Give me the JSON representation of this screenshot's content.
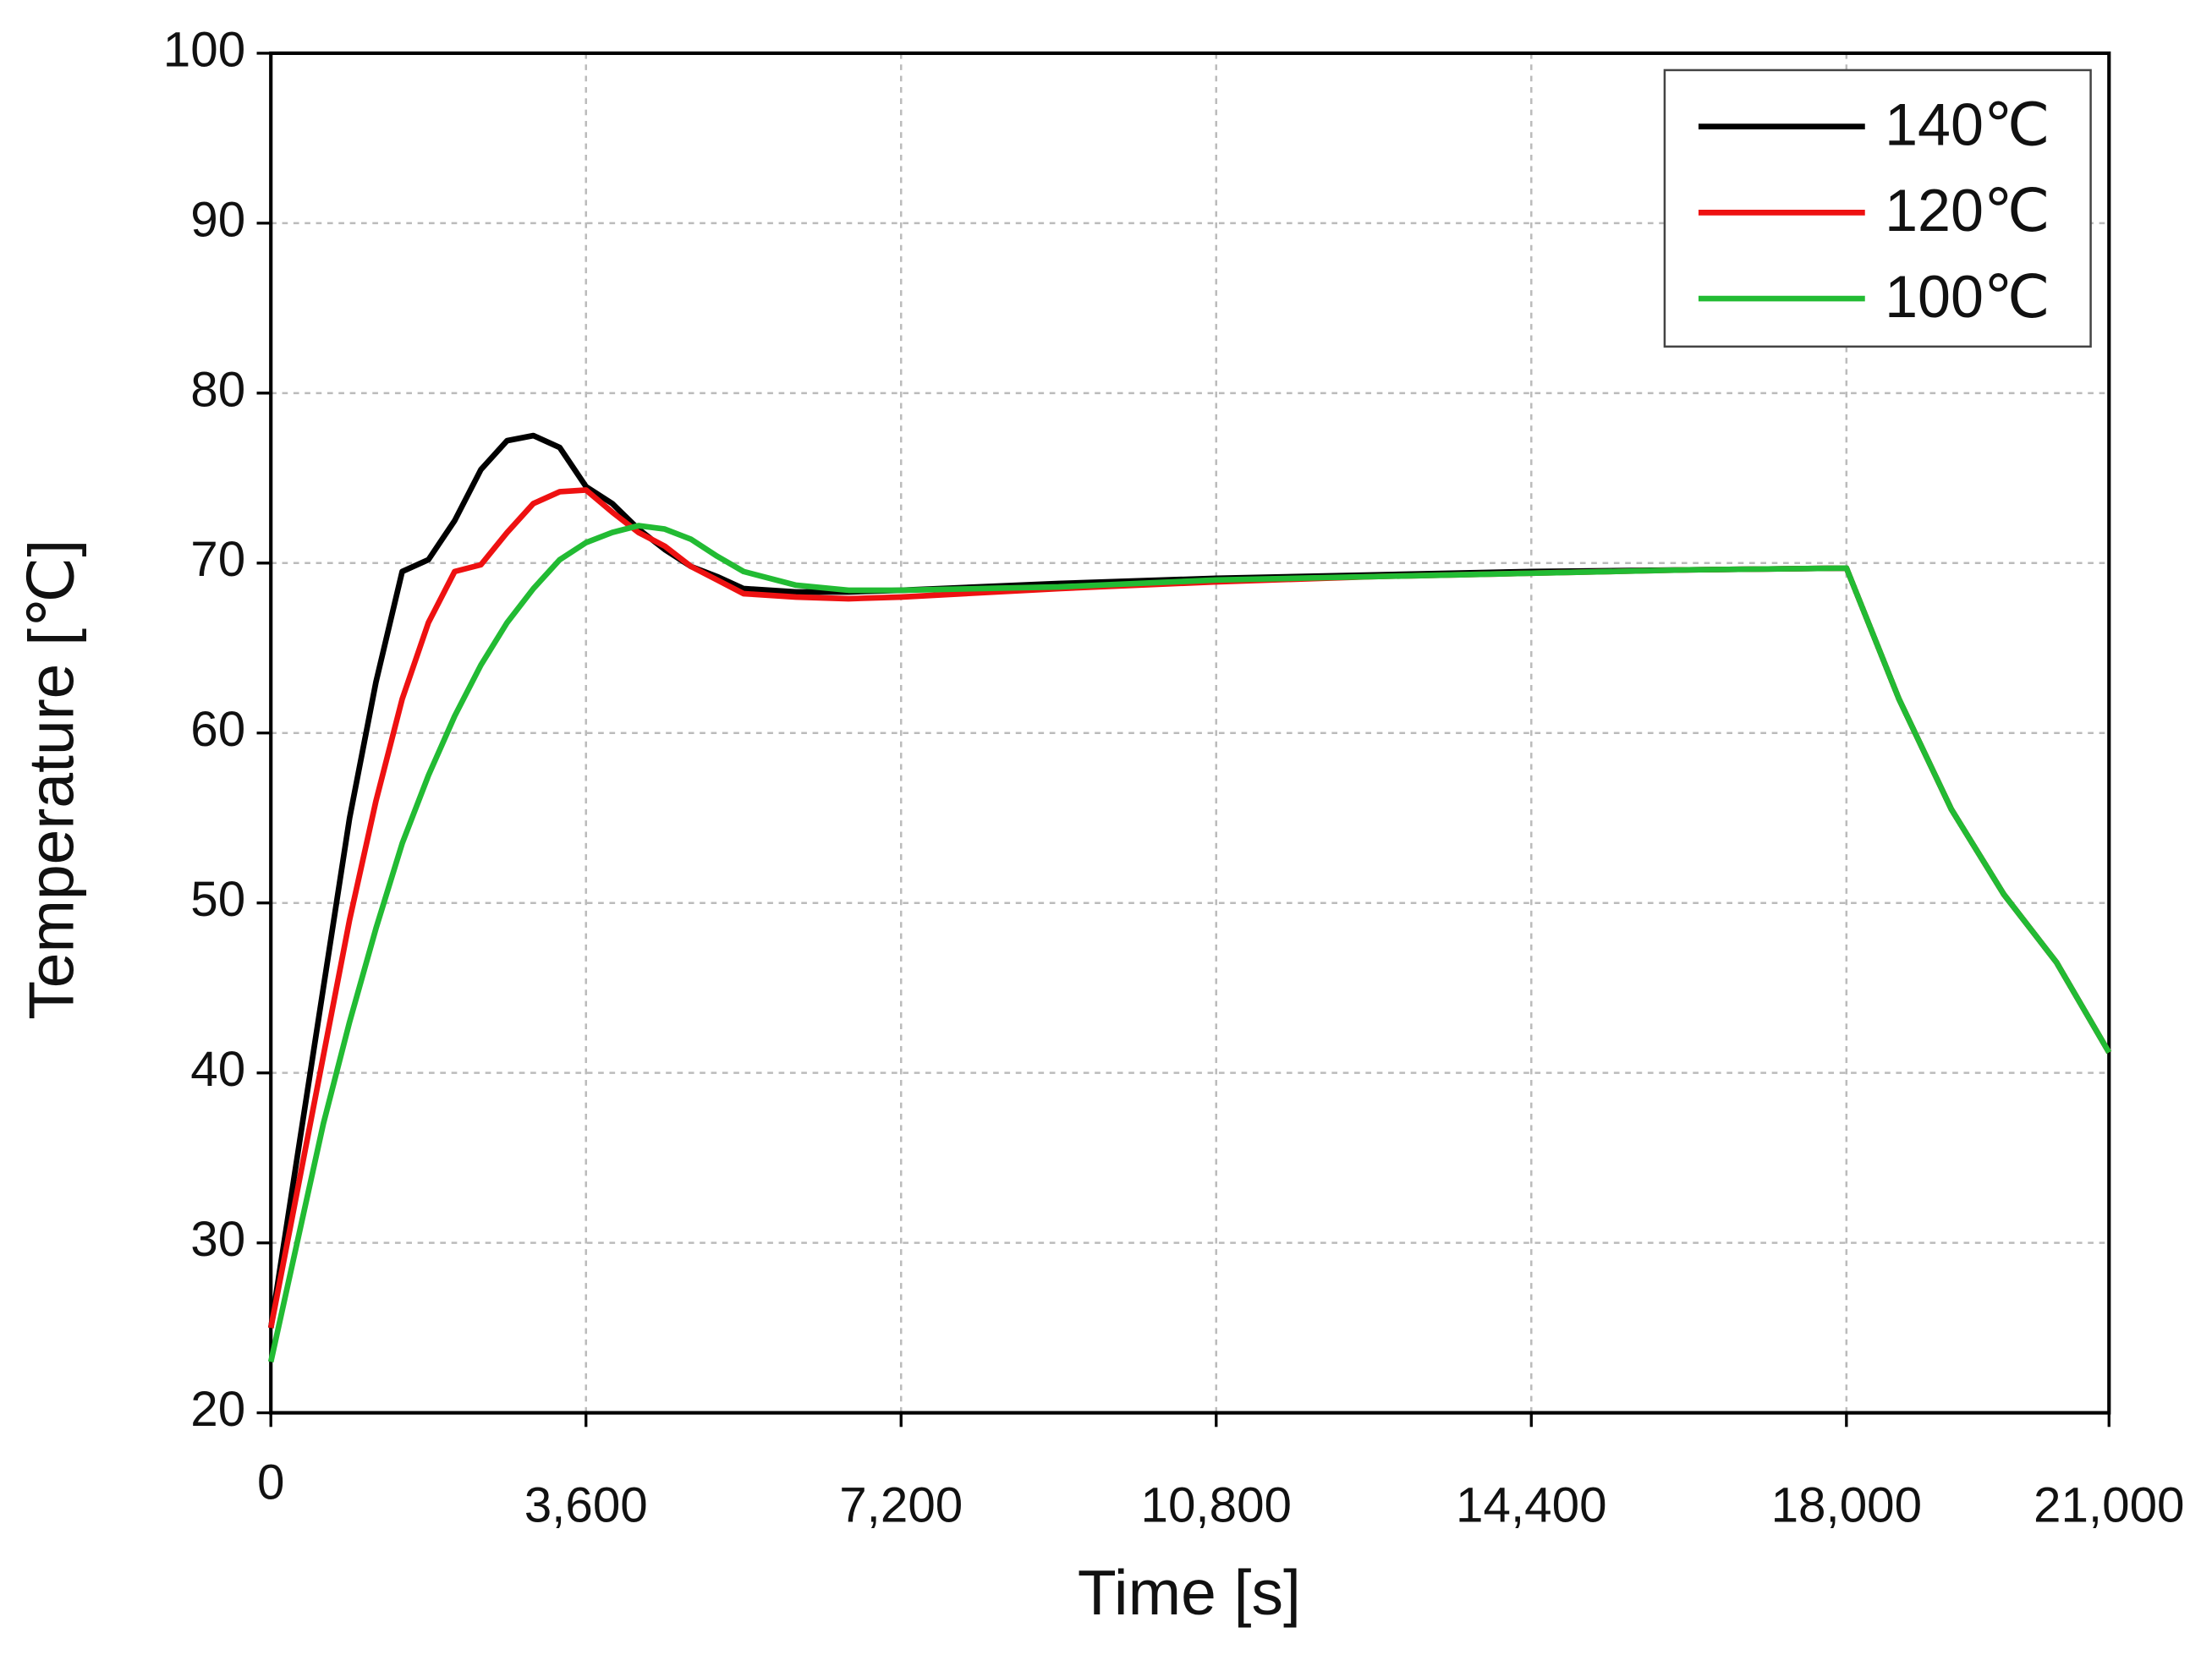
{
  "chart_data": {
    "type": "line",
    "xlabel": "Time [s]",
    "ylabel": "Temperature [℃]",
    "x": [
      0,
      300,
      600,
      900,
      1200,
      1500,
      1800,
      2100,
      2400,
      2700,
      3000,
      3300,
      3600,
      3900,
      4200,
      4500,
      4800,
      5100,
      5400,
      6000,
      6600,
      7200,
      9000,
      10800,
      12600,
      14400,
      16200,
      18000,
      18600,
      19200,
      19800,
      20400,
      21000
    ],
    "series": [
      {
        "name": "140℃",
        "color": "#000000",
        "values": [
          25,
          35,
          45,
          55,
          63,
          69.5,
          70.2,
          72.5,
          75.5,
          77.2,
          77.5,
          76.8,
          74.5,
          73.5,
          72,
          70.8,
          69.8,
          69.2,
          68.5,
          68.3,
          68.3,
          68.4,
          68.8,
          69.1,
          69.3,
          69.5,
          69.6,
          69.7,
          62,
          55.5,
          50.5,
          46.5,
          41.2
        ]
      },
      {
        "name": "120℃",
        "color": "#ee1111",
        "values": [
          25,
          33,
          41,
          49,
          56,
          62,
          66.5,
          69.5,
          69.9,
          71.8,
          73.5,
          74.2,
          74.3,
          73,
          71.8,
          71,
          69.8,
          69,
          68.2,
          68,
          67.9,
          68,
          68.5,
          68.9,
          69.2,
          69.4,
          69.6,
          69.7,
          62,
          55.5,
          50.5,
          46.5,
          41.2
        ]
      },
      {
        "name": "100℃",
        "color": "#22bb33",
        "values": [
          23,
          30,
          37,
          43,
          48.5,
          53.5,
          57.5,
          61,
          64,
          66.5,
          68.5,
          70.2,
          71.2,
          71.8,
          72.2,
          72,
          71.4,
          70.4,
          69.5,
          68.7,
          68.4,
          68.4,
          68.6,
          69,
          69.2,
          69.4,
          69.6,
          69.7,
          62,
          55.5,
          50.5,
          46.5,
          41.2
        ]
      }
    ],
    "xlim": [
      0,
      21000
    ],
    "ylim": [
      20,
      100
    ],
    "xticks": [
      0,
      {
        "value": 3600,
        "label": "3,600"
      },
      {
        "value": 7200,
        "label": "7,200"
      },
      {
        "value": 10800,
        "label": "10,800"
      },
      {
        "value": 14400,
        "label": "14,400"
      },
      {
        "value": 18000,
        "label": "18,000"
      },
      {
        "value": 21000,
        "label": "21,000"
      }
    ],
    "yticks": [
      20,
      30,
      40,
      50,
      60,
      70,
      80,
      90,
      100
    ],
    "grid": true,
    "legend": "upper right"
  }
}
